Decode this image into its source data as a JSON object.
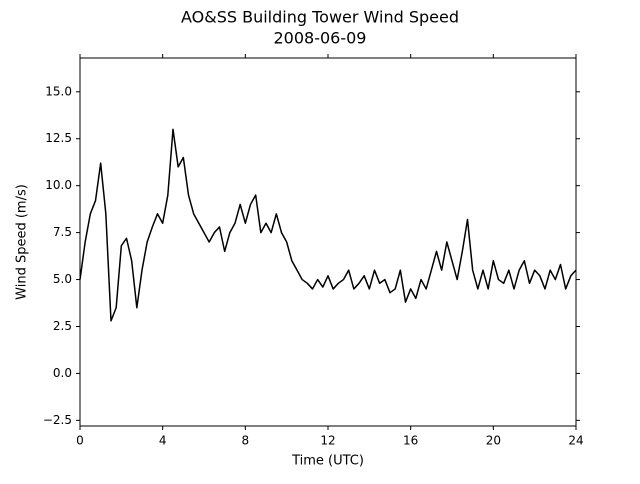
{
  "chart_data": {
    "type": "line",
    "title": "AO&SS Building Tower Wind Speed",
    "subtitle": "2008-06-09",
    "x_label": "Time (UTC)",
    "y_label": "Wind Speed (m/s)",
    "x": [
      0,
      0.25,
      0.5,
      0.75,
      1,
      1.25,
      1.5,
      1.75,
      2,
      2.25,
      2.5,
      2.75,
      3,
      3.25,
      3.5,
      3.75,
      4,
      4.25,
      4.5,
      4.75,
      5,
      5.25,
      5.5,
      5.75,
      6,
      6.25,
      6.5,
      6.75,
      7,
      7.25,
      7.5,
      7.75,
      8,
      8.25,
      8.5,
      8.75,
      9,
      9.25,
      9.5,
      9.75,
      10,
      10.25,
      10.5,
      10.75,
      11,
      11.25,
      11.5,
      11.75,
      12,
      12.25,
      12.5,
      12.75,
      13,
      13.25,
      13.5,
      13.75,
      14,
      14.25,
      14.5,
      14.75,
      15,
      15.25,
      15.5,
      15.75,
      16,
      16.25,
      16.5,
      16.75,
      17,
      17.25,
      17.5,
      17.75,
      18,
      18.25,
      18.5,
      18.75,
      19,
      19.25,
      19.5,
      19.75,
      20,
      20.25,
      20.5,
      20.75,
      21,
      21.25,
      21.5,
      21.75,
      22,
      22.25,
      22.5,
      22.75,
      23,
      23.25,
      23.5,
      23.75,
      24
    ],
    "series": [
      {
        "name": "Wind Speed",
        "color": "#000000",
        "values": [
          5.0,
          7.0,
          8.5,
          9.2,
          11.2,
          8.5,
          2.8,
          3.5,
          6.8,
          7.2,
          6.0,
          3.5,
          5.5,
          7.0,
          7.8,
          8.5,
          8.0,
          9.5,
          13.0,
          11.0,
          11.5,
          9.5,
          8.5,
          8.0,
          7.5,
          7.0,
          7.5,
          7.8,
          6.5,
          7.5,
          8.0,
          9.0,
          8.0,
          9.0,
          9.5,
          7.5,
          8.0,
          7.5,
          8.5,
          7.5,
          7.0,
          6.0,
          5.5,
          5.0,
          4.8,
          4.5,
          5.0,
          4.6,
          5.2,
          4.5,
          4.8,
          5.0,
          5.5,
          4.5,
          4.8,
          5.2,
          4.5,
          5.5,
          4.8,
          5.0,
          4.3,
          4.5,
          5.5,
          3.8,
          4.5,
          4.0,
          5.0,
          4.5,
          5.5,
          6.5,
          5.5,
          7.0,
          6.0,
          5.0,
          6.5,
          8.2,
          5.5,
          4.5,
          5.5,
          4.5,
          6.0,
          5.0,
          4.8,
          5.5,
          4.5,
          5.5,
          6.0,
          4.8,
          5.5,
          5.2,
          4.5,
          5.5,
          5.0,
          5.8,
          4.5,
          5.2,
          5.5
        ]
      }
    ],
    "xlim": [
      0,
      24
    ],
    "xticks": [
      0,
      4,
      8,
      12,
      16,
      20,
      24
    ],
    "ylim": [
      -2.8,
      16.8
    ],
    "yticks": [
      {
        "value": -2.5,
        "label": "−2.5"
      },
      {
        "value": 0,
        "label": "0.0"
      },
      2.5,
      {
        "value": 5,
        "label": "5.0"
      },
      7.5,
      {
        "value": 10,
        "label": "10.0"
      },
      12.5,
      {
        "value": 15,
        "label": "15.0"
      }
    ],
    "grid": false
  }
}
